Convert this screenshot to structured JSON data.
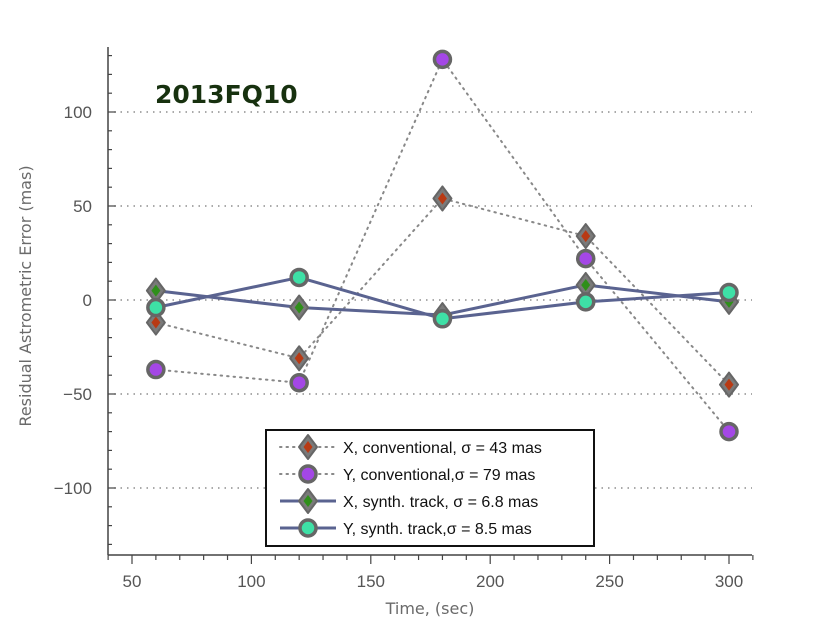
{
  "chart_data": {
    "type": "line",
    "title": "",
    "annotation": "2013FQ10",
    "xlabel": "Time, (sec)",
    "ylabel": "Residual Astrometric Error (mas)",
    "xlim": [
      40,
      310
    ],
    "ylim": [
      -135,
      135
    ],
    "x_ticks": [
      50,
      100,
      150,
      200,
      250,
      300
    ],
    "x_tick_labels": [
      "50",
      "100",
      "150",
      "200",
      "250",
      "300"
    ],
    "y_ticks": [
      -100,
      -50,
      0,
      50,
      100
    ],
    "y_tick_labels": [
      "−100",
      "−50",
      "0",
      "50",
      "100"
    ],
    "grid": "horizontal dotted at major y ticks",
    "legend_position": "bottom-center",
    "x": [
      60,
      120,
      180,
      240,
      300
    ],
    "series": [
      {
        "name": "X, conventional",
        "legend_label": "X, conventional, σ = 43 mas",
        "marker": "diamond",
        "line": "dotted",
        "values": [
          -12,
          -31,
          54,
          34,
          -45
        ],
        "color": "#b83a14",
        "marker_edge": "#666666",
        "line_color": "#888888"
      },
      {
        "name": "Y, conventional",
        "legend_label": "Y, conventional,σ = 79 mas",
        "marker": "circle",
        "line": "dotted",
        "values": [
          -37,
          -44,
          128,
          22,
          -70
        ],
        "color": "#a447e6",
        "marker_edge": "#666666",
        "line_color": "#888888"
      },
      {
        "name": "X, synth. track",
        "legend_label": "X, synth. track, σ = 6.8 mas",
        "marker": "diamond",
        "line": "solid",
        "values": [
          5,
          -4,
          -8,
          8,
          -1
        ],
        "color": "#2f8f1a",
        "marker_edge": "#666666",
        "line_color": "#5a6390"
      },
      {
        "name": "Y, synth. track",
        "legend_label": "Y, synth. track,σ = 8.5 mas",
        "marker": "circle",
        "line": "solid",
        "values": [
          -4,
          12,
          -10,
          -1,
          4
        ],
        "color": "#3ee0a6",
        "marker_edge": "#666666",
        "line_color": "#5a6390"
      }
    ]
  }
}
